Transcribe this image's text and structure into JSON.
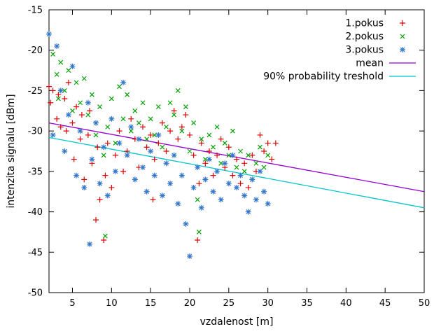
{
  "chart_data": {
    "type": "scatter",
    "title": "",
    "xlabel": "vzdalenost [m]",
    "ylabel": "intenzita signalu [dBm]",
    "xlim": [
      2,
      50
    ],
    "ylim": [
      -50,
      -15
    ],
    "xticks": [
      5,
      10,
      15,
      20,
      25,
      30,
      35,
      40,
      45,
      50
    ],
    "yticks": [
      -50,
      -45,
      -40,
      -35,
      -30,
      -25,
      -20,
      -15
    ],
    "grid": false,
    "legend_position": "top-right",
    "background_color": "#ffffff",
    "border_color": "#000000",
    "series": [
      {
        "name": "1.pokus",
        "marker": "plus",
        "color": "#dd0000",
        "points": [
          [
            2.0,
            -24.5
          ],
          [
            2.2,
            -26.5
          ],
          [
            2.5,
            -25.0
          ],
          [
            3.0,
            -28.5
          ],
          [
            3.2,
            -25.5
          ],
          [
            3.5,
            -29.5
          ],
          [
            4.0,
            -26.0
          ],
          [
            4.2,
            -30.0
          ],
          [
            4.5,
            -24.0
          ],
          [
            5.0,
            -29.0
          ],
          [
            5.2,
            -33.5
          ],
          [
            5.5,
            -27.0
          ],
          [
            6.0,
            -31.0
          ],
          [
            6.2,
            -28.0
          ],
          [
            6.5,
            -36.0
          ],
          [
            7.0,
            -30.5
          ],
          [
            7.2,
            -27.5
          ],
          [
            7.5,
            -34.0
          ],
          [
            8.0,
            -41.0
          ],
          [
            8.2,
            -32.0
          ],
          [
            8.5,
            -38.5
          ],
          [
            9.0,
            -43.5
          ],
          [
            9.2,
            -35.5
          ],
          [
            9.5,
            -31.5
          ],
          [
            10.0,
            -37.0
          ],
          [
            10.5,
            -33.0
          ],
          [
            11.0,
            -30.0
          ],
          [
            11.5,
            -35.0
          ],
          [
            12.0,
            -32.5
          ],
          [
            12.5,
            -28.5
          ],
          [
            13.0,
            -31.0
          ],
          [
            13.5,
            -34.5
          ],
          [
            14.0,
            -29.5
          ],
          [
            14.5,
            -32.0
          ],
          [
            15.0,
            -30.5
          ],
          [
            15.3,
            -38.5
          ],
          [
            15.5,
            -33.5
          ],
          [
            16.0,
            -31.5
          ],
          [
            16.5,
            -29.0
          ],
          [
            17.0,
            -32.5
          ],
          [
            17.5,
            -30.0
          ],
          [
            18.0,
            -27.5
          ],
          [
            18.5,
            -31.0
          ],
          [
            19.0,
            -29.5
          ],
          [
            19.5,
            -28.0
          ],
          [
            20.0,
            -30.5
          ],
          [
            20.5,
            -33.0
          ],
          [
            21.0,
            -43.5
          ],
          [
            21.2,
            -36.5
          ],
          [
            21.5,
            -31.5
          ],
          [
            22.0,
            -34.0
          ],
          [
            22.5,
            -32.5
          ],
          [
            23.0,
            -35.5
          ],
          [
            23.5,
            -33.0
          ],
          [
            24.0,
            -31.0
          ],
          [
            24.5,
            -34.5
          ],
          [
            25.0,
            -32.0
          ],
          [
            25.5,
            -35.5
          ],
          [
            26.0,
            -33.5
          ],
          [
            26.5,
            -36.5
          ],
          [
            27.0,
            -34.0
          ],
          [
            27.5,
            -37.0
          ],
          [
            28.0,
            -33.0
          ],
          [
            28.5,
            -35.0
          ],
          [
            29.0,
            -30.5
          ],
          [
            29.5,
            -32.5
          ],
          [
            30.0,
            -31.5
          ],
          [
            30.5,
            -33.5
          ],
          [
            31.0,
            -31.5
          ]
        ]
      },
      {
        "name": "2.pokus",
        "marker": "cross",
        "color": "#00a000",
        "points": [
          [
            2.5,
            -20.5
          ],
          [
            3.0,
            -23.0
          ],
          [
            3.2,
            -26.0
          ],
          [
            3.5,
            -21.5
          ],
          [
            4.0,
            -25.0
          ],
          [
            4.5,
            -22.5
          ],
          [
            5.0,
            -27.5
          ],
          [
            5.5,
            -24.0
          ],
          [
            6.0,
            -26.5
          ],
          [
            6.5,
            -23.5
          ],
          [
            7.0,
            -28.0
          ],
          [
            7.5,
            -25.5
          ],
          [
            8.0,
            -30.5
          ],
          [
            8.5,
            -27.0
          ],
          [
            9.0,
            -33.0
          ],
          [
            9.2,
            -43.0
          ],
          [
            9.5,
            -29.5
          ],
          [
            10.0,
            -26.0
          ],
          [
            10.5,
            -31.5
          ],
          [
            11.0,
            -24.5
          ],
          [
            11.5,
            -28.5
          ],
          [
            12.0,
            -25.5
          ],
          [
            12.5,
            -30.0
          ],
          [
            13.0,
            -27.5
          ],
          [
            13.5,
            -29.0
          ],
          [
            14.0,
            -26.5
          ],
          [
            14.5,
            -31.0
          ],
          [
            15.0,
            -28.5
          ],
          [
            15.5,
            -30.5
          ],
          [
            16.0,
            -27.0
          ],
          [
            16.5,
            -32.0
          ],
          [
            17.0,
            -29.5
          ],
          [
            17.5,
            -26.5
          ],
          [
            18.0,
            -28.0
          ],
          [
            18.5,
            -25.0
          ],
          [
            19.0,
            -30.0
          ],
          [
            19.5,
            -27.0
          ],
          [
            20.0,
            -32.5
          ],
          [
            20.5,
            -29.0
          ],
          [
            21.0,
            -38.5
          ],
          [
            21.2,
            -42.5
          ],
          [
            21.5,
            -31.0
          ],
          [
            22.0,
            -33.5
          ],
          [
            22.5,
            -30.5
          ],
          [
            23.0,
            -32.0
          ],
          [
            23.5,
            -29.5
          ],
          [
            24.0,
            -34.0
          ],
          [
            24.5,
            -31.5
          ],
          [
            25.0,
            -33.0
          ],
          [
            25.5,
            -30.0
          ],
          [
            26.0,
            -34.5
          ],
          [
            26.5,
            -32.5
          ],
          [
            27.0,
            -35.0
          ],
          [
            27.5,
            -33.0
          ],
          [
            28.0,
            -36.0
          ],
          [
            28.5,
            -34.0
          ],
          [
            29.0,
            -32.0
          ],
          [
            29.5,
            -34.5
          ],
          [
            30.0,
            -33.0
          ]
        ]
      },
      {
        "name": "3.pokus",
        "marker": "asterisk",
        "color": "#3377cc",
        "points": [
          [
            2.0,
            -18.0
          ],
          [
            2.5,
            -30.5
          ],
          [
            3.0,
            -19.5
          ],
          [
            3.5,
            -25.0
          ],
          [
            4.0,
            -32.5
          ],
          [
            4.5,
            -28.0
          ],
          [
            5.0,
            -22.0
          ],
          [
            5.5,
            -35.5
          ],
          [
            6.0,
            -30.0
          ],
          [
            6.5,
            -37.0
          ],
          [
            7.0,
            -26.5
          ],
          [
            7.2,
            -44.0
          ],
          [
            7.5,
            -33.5
          ],
          [
            8.0,
            -29.0
          ],
          [
            8.5,
            -36.5
          ],
          [
            9.0,
            -32.0
          ],
          [
            9.5,
            -38.0
          ],
          [
            10.0,
            -28.5
          ],
          [
            10.5,
            -35.0
          ],
          [
            11.0,
            -31.5
          ],
          [
            11.5,
            -24.0
          ],
          [
            12.0,
            -33.0
          ],
          [
            12.5,
            -29.5
          ],
          [
            13.0,
            -36.0
          ],
          [
            13.5,
            -31.0
          ],
          [
            14.0,
            -34.5
          ],
          [
            14.5,
            -37.5
          ],
          [
            15.0,
            -32.5
          ],
          [
            15.5,
            -35.5
          ],
          [
            16.0,
            -30.5
          ],
          [
            16.5,
            -38.0
          ],
          [
            17.0,
            -34.0
          ],
          [
            17.5,
            -36.5
          ],
          [
            18.0,
            -33.0
          ],
          [
            18.5,
            -39.0
          ],
          [
            19.0,
            -35.5
          ],
          [
            19.5,
            -41.5
          ],
          [
            20.0,
            -45.5
          ],
          [
            20.5,
            -37.0
          ],
          [
            21.0,
            -34.5
          ],
          [
            21.5,
            -39.5
          ],
          [
            22.0,
            -36.0
          ],
          [
            22.5,
            -33.5
          ],
          [
            23.0,
            -37.5
          ],
          [
            23.5,
            -35.0
          ],
          [
            24.0,
            -38.5
          ],
          [
            24.5,
            -34.0
          ],
          [
            25.0,
            -36.5
          ],
          [
            25.5,
            -33.0
          ],
          [
            26.0,
            -37.0
          ],
          [
            26.5,
            -35.5
          ],
          [
            27.0,
            -38.0
          ],
          [
            27.5,
            -40.0
          ],
          [
            28.0,
            -36.0
          ],
          [
            28.5,
            -38.5
          ],
          [
            29.0,
            -35.0
          ],
          [
            29.5,
            -37.5
          ],
          [
            30.0,
            -39.0
          ]
        ]
      }
    ],
    "lines": [
      {
        "name": "mean",
        "color": "#9400d3",
        "points": [
          [
            2,
            -29.0
          ],
          [
            50,
            -37.5
          ]
        ]
      },
      {
        "name": "90% probability treshold",
        "color": "#00c5cd",
        "points": [
          [
            2,
            -30.8
          ],
          [
            50,
            -39.5
          ]
        ]
      }
    ]
  }
}
